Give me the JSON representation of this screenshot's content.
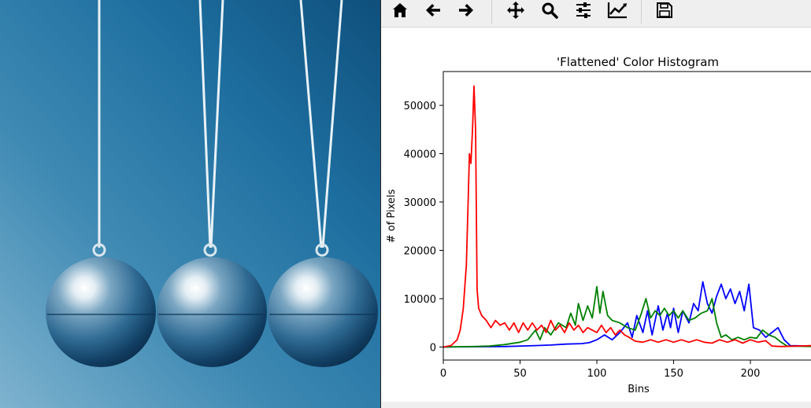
{
  "photo": {
    "description_icon": "newtons-cradle-photo-icon"
  },
  "toolbar": {
    "buttons": [
      {
        "name": "home-button",
        "icon": "home-icon"
      },
      {
        "name": "back-button",
        "icon": "arrow-left-icon"
      },
      {
        "name": "forward-button",
        "icon": "arrow-right-icon"
      },
      {
        "name": "pan-button",
        "icon": "move-icon"
      },
      {
        "name": "zoom-button",
        "icon": "magnifier-icon"
      },
      {
        "name": "configure-subplots-button",
        "icon": "sliders-icon"
      },
      {
        "name": "edit-axis-button",
        "icon": "line-chart-icon"
      },
      {
        "name": "save-button",
        "icon": "floppy-disk-icon"
      }
    ]
  },
  "chart_data": {
    "type": "line",
    "title": "'Flattened' Color Histogram",
    "xlabel": "Bins",
    "ylabel": "# of Pixels",
    "xlim": [
      0,
      241
    ],
    "ylim": [
      -2700,
      57000
    ],
    "xticks": [
      0,
      50,
      100,
      150,
      200
    ],
    "yticks": [
      0,
      10000,
      20000,
      30000,
      40000,
      50000
    ],
    "grid": false,
    "series": [
      {
        "color": "#0000ff",
        "points": [
          [
            0,
            0
          ],
          [
            20,
            50
          ],
          [
            40,
            100
          ],
          [
            60,
            300
          ],
          [
            70,
            400
          ],
          [
            80,
            600
          ],
          [
            90,
            700
          ],
          [
            95,
            900
          ],
          [
            100,
            1500
          ],
          [
            105,
            2500
          ],
          [
            110,
            1500
          ],
          [
            115,
            3000
          ],
          [
            120,
            5000
          ],
          [
            123,
            2000
          ],
          [
            126,
            6500
          ],
          [
            130,
            3000
          ],
          [
            133,
            7500
          ],
          [
            136,
            2500
          ],
          [
            140,
            8500
          ],
          [
            143,
            3500
          ],
          [
            146,
            7000
          ],
          [
            148,
            4000
          ],
          [
            150,
            8000
          ],
          [
            153,
            3000
          ],
          [
            156,
            7500
          ],
          [
            160,
            5000
          ],
          [
            163,
            9000
          ],
          [
            166,
            7500
          ],
          [
            169,
            13500
          ],
          [
            172,
            9000
          ],
          [
            175,
            7000
          ],
          [
            178,
            10500
          ],
          [
            181,
            13000
          ],
          [
            184,
            10000
          ],
          [
            187,
            12000
          ],
          [
            190,
            9000
          ],
          [
            193,
            11500
          ],
          [
            196,
            7500
          ],
          [
            199,
            13000
          ],
          [
            202,
            4000
          ],
          [
            206,
            3500
          ],
          [
            210,
            2000
          ],
          [
            214,
            3000
          ],
          [
            218,
            4000
          ],
          [
            222,
            1500
          ],
          [
            226,
            300
          ],
          [
            241,
            200
          ]
        ]
      },
      {
        "color": "#008000",
        "points": [
          [
            0,
            0
          ],
          [
            20,
            100
          ],
          [
            30,
            200
          ],
          [
            40,
            500
          ],
          [
            50,
            1000
          ],
          [
            55,
            1500
          ],
          [
            60,
            3500
          ],
          [
            63,
            1500
          ],
          [
            66,
            4000
          ],
          [
            70,
            2500
          ],
          [
            75,
            5000
          ],
          [
            80,
            4000
          ],
          [
            83,
            7000
          ],
          [
            86,
            4500
          ],
          [
            88,
            9000
          ],
          [
            91,
            5500
          ],
          [
            94,
            8500
          ],
          [
            97,
            6000
          ],
          [
            100,
            12500
          ],
          [
            102,
            7000
          ],
          [
            104,
            11500
          ],
          [
            107,
            6500
          ],
          [
            110,
            5500
          ],
          [
            115,
            5000
          ],
          [
            120,
            4000
          ],
          [
            125,
            3500
          ],
          [
            129,
            7000
          ],
          [
            132,
            10000
          ],
          [
            135,
            6000
          ],
          [
            138,
            7500
          ],
          [
            141,
            6500
          ],
          [
            144,
            8000
          ],
          [
            147,
            6500
          ],
          [
            150,
            7500
          ],
          [
            153,
            6000
          ],
          [
            156,
            7500
          ],
          [
            160,
            5500
          ],
          [
            164,
            6000
          ],
          [
            168,
            7000
          ],
          [
            172,
            7500
          ],
          [
            175,
            10000
          ],
          [
            178,
            5000
          ],
          [
            181,
            2000
          ],
          [
            184,
            2500
          ],
          [
            188,
            1500
          ],
          [
            192,
            2000
          ],
          [
            196,
            1500
          ],
          [
            200,
            2000
          ],
          [
            204,
            1800
          ],
          [
            208,
            3500
          ],
          [
            212,
            2500
          ],
          [
            216,
            2000
          ],
          [
            220,
            1000
          ],
          [
            224,
            200
          ],
          [
            241,
            100
          ]
        ]
      },
      {
        "color": "#ff0000",
        "points": [
          [
            0,
            0
          ],
          [
            5,
            300
          ],
          [
            9,
            1500
          ],
          [
            11,
            3500
          ],
          [
            13,
            8000
          ],
          [
            15,
            17000
          ],
          [
            16,
            28000
          ],
          [
            17,
            40000
          ],
          [
            18,
            38000
          ],
          [
            19,
            45000
          ],
          [
            20,
            54000
          ],
          [
            21,
            45000
          ],
          [
            22,
            12000
          ],
          [
            23,
            8000
          ],
          [
            25,
            6500
          ],
          [
            28,
            5500
          ],
          [
            31,
            4000
          ],
          [
            34,
            5500
          ],
          [
            37,
            4500
          ],
          [
            40,
            5000
          ],
          [
            43,
            3500
          ],
          [
            46,
            5000
          ],
          [
            49,
            3000
          ],
          [
            52,
            5000
          ],
          [
            55,
            3500
          ],
          [
            58,
            5000
          ],
          [
            61,
            3500
          ],
          [
            64,
            4500
          ],
          [
            67,
            3000
          ],
          [
            70,
            5500
          ],
          [
            73,
            3500
          ],
          [
            76,
            4500
          ],
          [
            79,
            3000
          ],
          [
            82,
            5000
          ],
          [
            85,
            3500
          ],
          [
            88,
            4500
          ],
          [
            91,
            3000
          ],
          [
            94,
            4000
          ],
          [
            97,
            3500
          ],
          [
            100,
            3000
          ],
          [
            103,
            4500
          ],
          [
            106,
            3000
          ],
          [
            109,
            4000
          ],
          [
            112,
            2500
          ],
          [
            115,
            3500
          ],
          [
            118,
            2500
          ],
          [
            121,
            2000
          ],
          [
            125,
            1200
          ],
          [
            130,
            1000
          ],
          [
            135,
            1500
          ],
          [
            140,
            1000
          ],
          [
            145,
            1500
          ],
          [
            150,
            1000
          ],
          [
            155,
            1500
          ],
          [
            160,
            1000
          ],
          [
            165,
            1500
          ],
          [
            170,
            1000
          ],
          [
            175,
            800
          ],
          [
            180,
            1500
          ],
          [
            185,
            1000
          ],
          [
            190,
            1500
          ],
          [
            195,
            800
          ],
          [
            200,
            1500
          ],
          [
            205,
            1000
          ],
          [
            210,
            1300
          ],
          [
            214,
            200
          ],
          [
            220,
            100
          ],
          [
            241,
            300
          ]
        ]
      }
    ]
  }
}
